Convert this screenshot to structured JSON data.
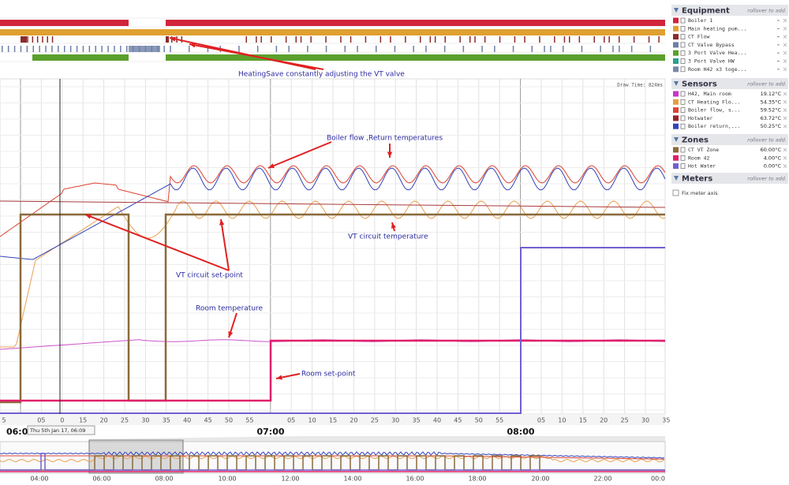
{
  "equipment_panel": {
    "title": "Equipment",
    "hint": "rollover to add.",
    "items": [
      {
        "name": "Boiler 1",
        "color": "#d0243c"
      },
      {
        "name": "Main heating pum...",
        "color": "#e0a030"
      },
      {
        "name": "CT Flow",
        "color": "#8b2a2a"
      },
      {
        "name": "CT Valve Bypass",
        "color": "#6d7fa8"
      },
      {
        "name": "3 Port Valve Hea...",
        "color": "#5aa02c"
      },
      {
        "name": "3 Port Valve HW",
        "color": "#2aa090"
      },
      {
        "name": "Room H42 x3 toge...",
        "color": "#7788aa"
      }
    ]
  },
  "sensors_panel": {
    "title": "Sensors",
    "hint": "rollover to add.",
    "items": [
      {
        "name": "H42, Main room",
        "reading": "19.12°C",
        "color": "#cc33cc"
      },
      {
        "name": "CT Heating Flo...",
        "reading": "54.35°C",
        "color": "#e0a040"
      },
      {
        "name": "Boiler flow, s...",
        "reading": "59.52°C",
        "color": "#dd4433"
      },
      {
        "name": "Hotwater",
        "reading": "63.72°C",
        "color": "#992222"
      },
      {
        "name": "Boiler return,...",
        "reading": "50.25°C",
        "color": "#3344bb"
      }
    ]
  },
  "zones_panel": {
    "title": "Zones",
    "hint": "rollover to add.",
    "items": [
      {
        "name": "CT VT Zone",
        "reading": "60.00°C",
        "color": "#8b6a3a"
      },
      {
        "name": "Room 42",
        "reading": "4.00°C",
        "color": "#e0206a"
      },
      {
        "name": "Hot Water",
        "reading": "0.00°C",
        "color": "#7060d0"
      }
    ]
  },
  "meters_panel": {
    "title": "Meters",
    "hint": "rollover to add."
  },
  "fix_meter_axis": "Fix meter axis",
  "draw_time": "Draw Time: 824ms",
  "annotations": [
    "HeatingSave constantly adjusting the VT valve",
    "Boiler flow ,Return temperatures",
    "VT circuit temperature",
    "VT circuit set-point",
    "Room temperature",
    "Room set-point"
  ],
  "time_axis": {
    "minute_labels": [
      "5",
      "05",
      "0",
      "15",
      "20",
      "25",
      "30",
      "35",
      "40",
      "45",
      "50",
      "55",
      "05",
      "10",
      "15",
      "20",
      "25",
      "30",
      "35",
      "40",
      "45",
      "50",
      "55",
      "05",
      "10",
      "15",
      "20",
      "25",
      "30",
      "35"
    ],
    "hour_labels": [
      "06:0",
      "07:00",
      "08:00"
    ]
  },
  "cursor_tooltip": "Thu 5th Jan 17, 06:09",
  "navigator_labels": [
    "04:00",
    "06:00",
    "08:00",
    "10:00",
    "12:00",
    "14:00",
    "16:00",
    "18:00",
    "20:00",
    "22:00",
    "00:0"
  ]
}
